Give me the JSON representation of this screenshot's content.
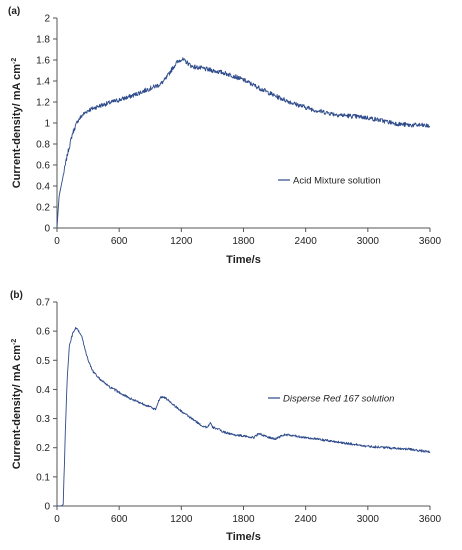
{
  "chart_data": [
    {
      "type": "line",
      "panel_label": "(a)",
      "xlabel": "Time/s",
      "ylabel": "Current-density/ mA cm",
      "ylabel_superscript": "-2",
      "xlim": [
        0,
        3600
      ],
      "ylim": [
        0,
        2
      ],
      "x_ticks": [
        "0",
        "600",
        "1200",
        "1800",
        "2400",
        "3000",
        "3600"
      ],
      "y_ticks": [
        "0",
        "0.2",
        "0.4",
        "0.6",
        "0.8",
        "1",
        "1.2",
        "1.4",
        "1.6",
        "1.8",
        "2"
      ],
      "grid": false,
      "legend_position": "center-right",
      "series": [
        {
          "name": "Acid Mixture solution",
          "color": "#2d4a8a",
          "x": [
            0,
            20,
            50,
            100,
            150,
            200,
            250,
            300,
            400,
            500,
            600,
            700,
            800,
            900,
            1000,
            1050,
            1100,
            1150,
            1200,
            1250,
            1300,
            1400,
            1500,
            1600,
            1700,
            1800,
            1900,
            2000,
            2100,
            2200,
            2300,
            2400,
            2500,
            2600,
            2700,
            2800,
            2900,
            3000,
            3100,
            3200,
            3300,
            3400,
            3500,
            3600
          ],
          "y": [
            0,
            0.3,
            0.45,
            0.7,
            0.9,
            1.02,
            1.08,
            1.12,
            1.16,
            1.19,
            1.22,
            1.25,
            1.29,
            1.33,
            1.37,
            1.42,
            1.5,
            1.57,
            1.61,
            1.58,
            1.54,
            1.52,
            1.5,
            1.48,
            1.45,
            1.41,
            1.36,
            1.31,
            1.26,
            1.22,
            1.18,
            1.15,
            1.12,
            1.1,
            1.08,
            1.07,
            1.06,
            1.05,
            1.03,
            1.01,
            0.99,
            0.98,
            0.98,
            0.97
          ]
        }
      ]
    },
    {
      "type": "line",
      "panel_label": "(b)",
      "xlabel": "Time/s",
      "ylabel": "Current-density/ mA cm",
      "ylabel_superscript": "-2",
      "xlim": [
        0,
        3600
      ],
      "ylim": [
        0,
        0.7
      ],
      "x_ticks": [
        "0",
        "600",
        "1200",
        "1800",
        "2400",
        "3000",
        "3600"
      ],
      "y_ticks": [
        "0",
        "0.1",
        "0.2",
        "0.3",
        "0.4",
        "0.5",
        "0.6",
        "0.7"
      ],
      "grid": false,
      "legend_position": "center-right",
      "series": [
        {
          "name": "Disperse Red 167 solution",
          "color": "#2d4a8a",
          "x": [
            0,
            40,
            60,
            80,
            100,
            120,
            150,
            180,
            210,
            240,
            270,
            300,
            350,
            400,
            500,
            600,
            700,
            800,
            900,
            950,
            980,
            1000,
            1050,
            1100,
            1200,
            1300,
            1400,
            1450,
            1480,
            1500,
            1550,
            1600,
            1700,
            1800,
            1900,
            1950,
            2000,
            2100,
            2200,
            2300,
            2400,
            2600,
            2800,
            3000,
            3200,
            3400,
            3500,
            3600
          ],
          "y": [
            0,
            0,
            0.005,
            0.25,
            0.45,
            0.55,
            0.59,
            0.61,
            0.6,
            0.58,
            0.54,
            0.5,
            0.46,
            0.44,
            0.41,
            0.39,
            0.37,
            0.355,
            0.34,
            0.33,
            0.36,
            0.375,
            0.37,
            0.355,
            0.325,
            0.3,
            0.275,
            0.27,
            0.285,
            0.27,
            0.265,
            0.255,
            0.245,
            0.24,
            0.235,
            0.25,
            0.24,
            0.23,
            0.245,
            0.24,
            0.235,
            0.225,
            0.215,
            0.205,
            0.2,
            0.195,
            0.19,
            0.185
          ]
        }
      ]
    }
  ]
}
